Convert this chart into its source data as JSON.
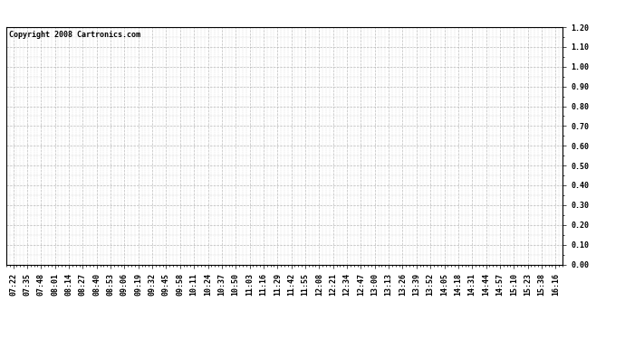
{
  "copyright_text": "Copyright 2008 Cartronics.com",
  "x_labels": [
    "07:22",
    "07:35",
    "07:48",
    "08:01",
    "08:14",
    "08:27",
    "08:40",
    "08:53",
    "09:06",
    "09:19",
    "09:32",
    "09:45",
    "09:58",
    "10:11",
    "10:24",
    "10:37",
    "10:50",
    "11:03",
    "11:16",
    "11:29",
    "11:42",
    "11:55",
    "12:08",
    "12:21",
    "12:34",
    "12:47",
    "13:00",
    "13:13",
    "13:26",
    "13:39",
    "13:52",
    "14:05",
    "14:18",
    "14:31",
    "14:44",
    "14:57",
    "15:10",
    "15:23",
    "15:38",
    "16:16"
  ],
  "ylim": [
    0.0,
    1.2
  ],
  "yticks": [
    0.0,
    0.1,
    0.2,
    0.3,
    0.4,
    0.5,
    0.6,
    0.7,
    0.8,
    0.9,
    1.0,
    1.1,
    1.2
  ],
  "background_color": "#ffffff",
  "plot_bg_color": "#ffffff",
  "grid_color": "#aaaaaa",
  "title_fontsize": 9,
  "copyright_fontsize": 6,
  "tick_fontsize": 6,
  "border_color": "#000000",
  "grid_linestyle": "--",
  "grid_linewidth": 0.5
}
